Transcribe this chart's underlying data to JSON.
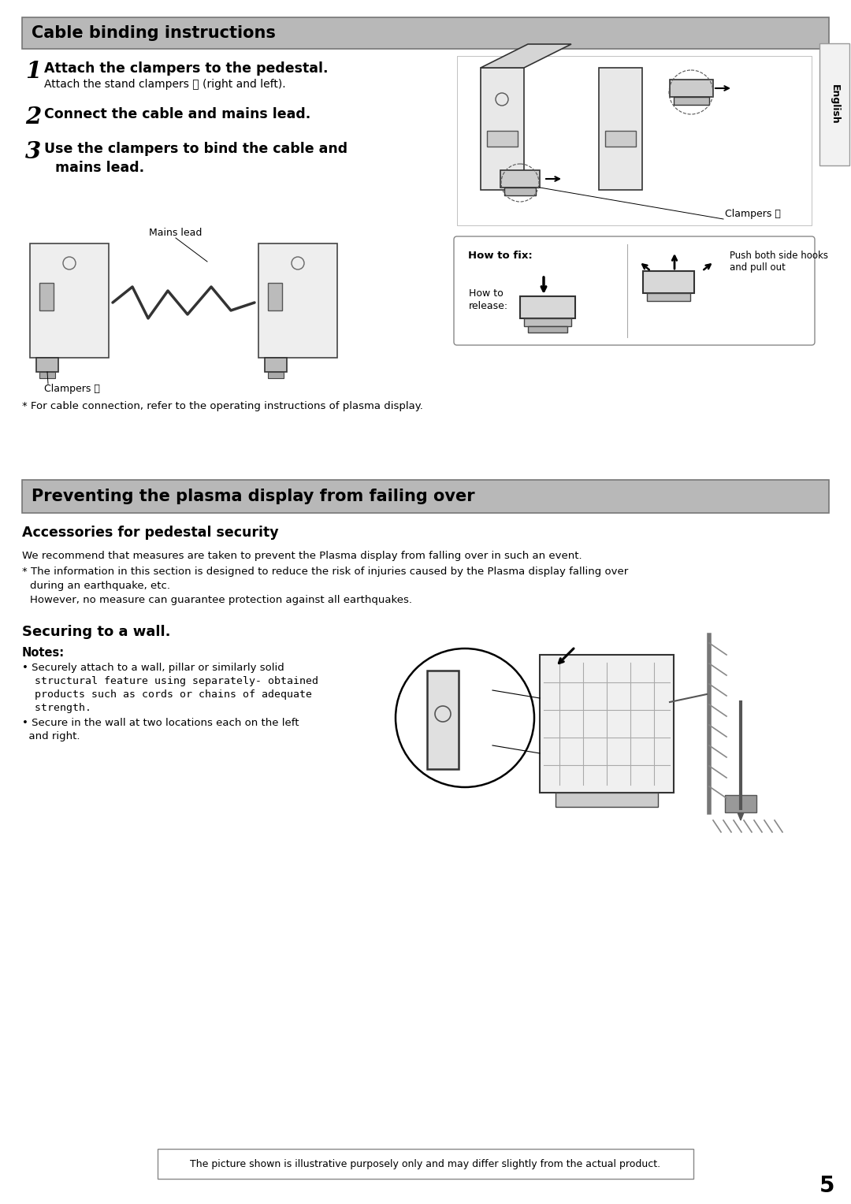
{
  "page_bg": "#ffffff",
  "header_bg": "#b8b8b8",
  "section1_title": "Cable binding instructions",
  "section2_title": "Preventing the plasma display from failing over",
  "step1_bold": "Attach the clampers to the pedestal.",
  "step1_sub": "Attach the stand clampers Ⓔ (right and left).",
  "step2_bold": "Connect the cable and mains lead.",
  "step3_bold_1": "Use the clampers to bind the cable and",
  "step3_bold_2": "mains lead.",
  "footnote1": "* For cable connection, refer to the operating instructions of plasma display.",
  "clampers_label_top": "Clampers Ⓔ",
  "mains_lead_label": "Mains lead",
  "clampers_label_bot": "Clampers Ⓔ",
  "how_to_fix": "How to fix:",
  "how_to_release_1": "How to",
  "how_to_release_2": "release:",
  "push_text": "Push both side hooks\nand pull out",
  "sub2_title": "Accessories for pedestal security",
  "body2_line1": "We recommend that measures are taken to prevent the Plasma display from falling over in such an event.",
  "body2_line2": "* The information in this section is designed to reduce the risk of injuries caused by the Plasma display falling over",
  "body2_line3": "  during an earthquake, etc.",
  "body2_line4": "  However, no measure can guarantee protection against all earthquakes.",
  "sub3_title": "Securing to a wall.",
  "notes_label": "Notes:",
  "note1a": "• Securely attach to a wall, pillar or similarly solid",
  "note1b": "  structural feature using separately- obtained",
  "note1c": "  products such as cords or chains of adequate",
  "note1d": "  strength.",
  "note2a": "• Secure in the wall at two locations each on the left",
  "note2b": "  and right.",
  "footer_text": "The picture shown is illustrative purposely only and may differ slightly from the actual product.",
  "page_num": "5",
  "english_label": "English"
}
